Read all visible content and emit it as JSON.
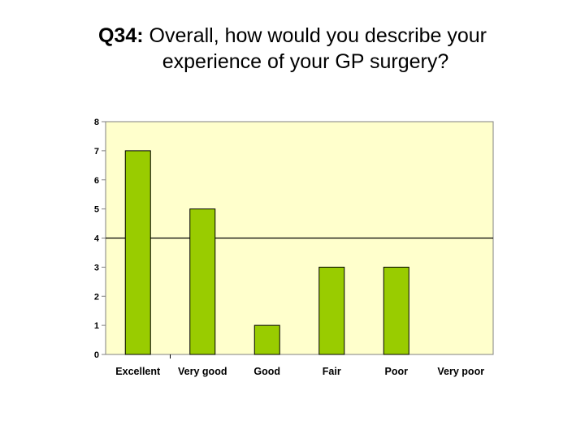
{
  "title": {
    "question_number": "Q34:",
    "line1": "Overall, how would you describe your",
    "line2": "experience of your GP surgery?"
  },
  "chart_data": {
    "type": "bar",
    "categories": [
      "Excellent",
      "Very good",
      "Good",
      "Fair",
      "Poor",
      "Very poor"
    ],
    "values": [
      7,
      5,
      1,
      3,
      3,
      0
    ],
    "ylim": [
      0,
      8
    ],
    "yticks": [
      "0",
      "1",
      "2",
      "3",
      "4",
      "5",
      "6",
      "7",
      "8"
    ],
    "reference_line": 4,
    "grid": false,
    "legend": "none",
    "colors": {
      "bar": "#99cc00",
      "plot_background": "#ffffcc",
      "axis": "#808080",
      "reference_line": "#000000"
    }
  }
}
